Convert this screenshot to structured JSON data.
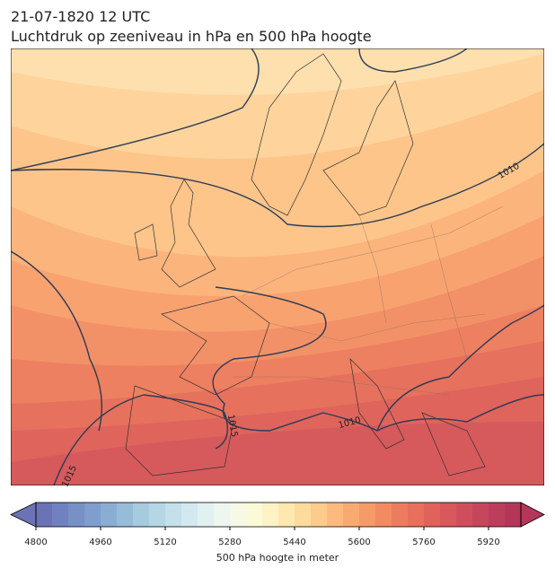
{
  "header": {
    "date": "21-07-1820 12 UTC",
    "title": "Luchtdruk op zeeniveau in hPa en 500 hPa hoogte"
  },
  "map": {
    "contour_labels": [
      1010,
      1015,
      1010,
      1015
    ]
  },
  "colorbar": {
    "label": "500 hPa hoogte in meter",
    "lim": [
      4800,
      6000
    ],
    "ticks": [
      4800,
      4960,
      5120,
      5280,
      5440,
      5600,
      5760,
      5920
    ],
    "colors": [
      "#6b73b6",
      "#6f82bf",
      "#7790c6",
      "#7f9ecd",
      "#8aadd3",
      "#97bcd9",
      "#a6cade",
      "#b5d6e4",
      "#c4e0ea",
      "#d3e9ef",
      "#e1f1f1",
      "#edf6ef",
      "#f6f9e6",
      "#fcfad6",
      "#fef3c4",
      "#fee8b0",
      "#fedb9d",
      "#fdcb8b",
      "#fcbb7d",
      "#f9aa71",
      "#f69a68",
      "#f28b62",
      "#ed7c5e",
      "#e76f5c",
      "#e0635b",
      "#d8585b",
      "#cf4e5b",
      "#c6465b",
      "#bd3e5b",
      "#b4375a"
    ]
  }
}
